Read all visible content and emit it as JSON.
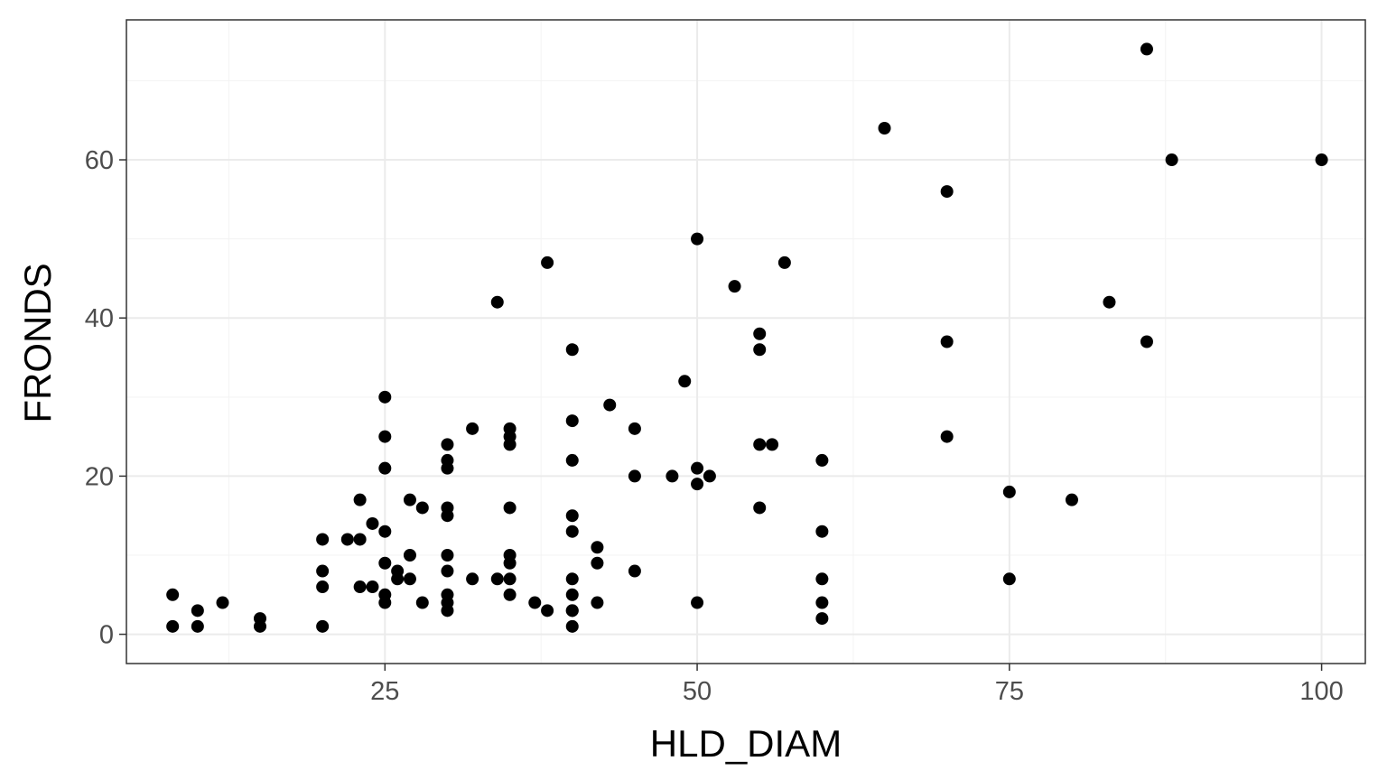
{
  "chart_data": {
    "type": "scatter",
    "title": "",
    "xlabel": "HLD_DIAM",
    "ylabel": "FRONDS",
    "xlim": [
      4.3,
      103.5
    ],
    "ylim": [
      -3.7,
      77.7
    ],
    "x_ticks": [
      25,
      50,
      75,
      100
    ],
    "x_tick_labels": [
      "25",
      "50",
      "75",
      "100"
    ],
    "x_minor": [
      12.5,
      37.5,
      62.5,
      87.5
    ],
    "y_ticks": [
      0,
      20,
      40,
      60
    ],
    "y_tick_labels": [
      "0",
      "20",
      "40",
      "60"
    ],
    "y_minor": [
      10,
      30,
      50,
      70
    ],
    "grid": true,
    "legend": "none",
    "point_color": "#000000",
    "series": [
      {
        "x": [
          8,
          8,
          10,
          10,
          12,
          15,
          15,
          20,
          20,
          20,
          20,
          22,
          23,
          23,
          23,
          24,
          24,
          25,
          25,
          25,
          25,
          25,
          25,
          25,
          26,
          26,
          27,
          27,
          27,
          28,
          28,
          30,
          30,
          30,
          30,
          30,
          30,
          30,
          30,
          30,
          30,
          32,
          32,
          34,
          34,
          35,
          35,
          35,
          35,
          35,
          35,
          35,
          35,
          37,
          38,
          38,
          40,
          40,
          40,
          40,
          40,
          40,
          40,
          40,
          40,
          40,
          42,
          42,
          42,
          43,
          45,
          45,
          45,
          48,
          49,
          50,
          50,
          50,
          50,
          51,
          53,
          55,
          55,
          55,
          55,
          56,
          57,
          60,
          60,
          60,
          60,
          60,
          65,
          70,
          70,
          70,
          75,
          75,
          80,
          83,
          86,
          86,
          88,
          100
        ],
        "y": [
          5,
          1,
          3,
          1,
          4,
          2,
          1,
          12,
          8,
          6,
          1,
          12,
          17,
          12,
          6,
          14,
          6,
          30,
          25,
          21,
          13,
          9,
          5,
          4,
          8,
          7,
          17,
          10,
          7,
          16,
          4,
          24,
          22,
          21,
          16,
          10,
          8,
          5,
          4,
          3,
          15,
          7,
          26,
          7,
          42,
          26,
          25,
          24,
          16,
          10,
          9,
          5,
          7,
          4,
          3,
          47,
          36,
          22,
          15,
          13,
          7,
          5,
          3,
          3,
          1,
          27,
          9,
          4,
          11,
          29,
          20,
          8,
          26,
          20,
          32,
          21,
          19,
          4,
          50,
          20,
          44,
          36,
          24,
          16,
          38,
          24,
          47,
          22,
          13,
          7,
          2,
          4,
          64,
          56,
          25,
          37,
          7,
          18,
          17,
          42,
          37,
          74,
          60,
          60
        ]
      }
    ]
  }
}
